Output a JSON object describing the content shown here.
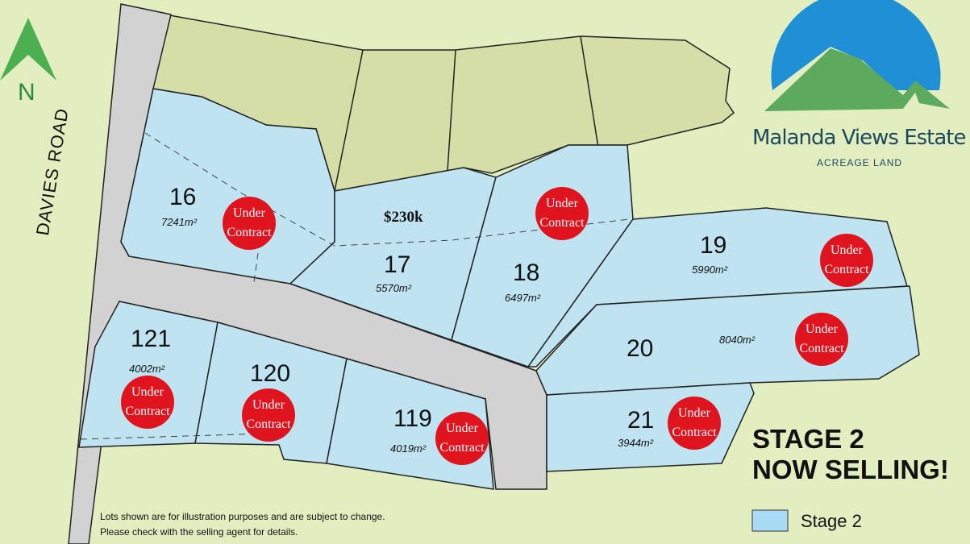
{
  "road_name": "DAVIES ROAD",
  "north_label": "N",
  "logo": {
    "title": "Malanda Views Estate",
    "subtitle": "ACREAGE LAND"
  },
  "headline": [
    "STAGE 2",
    "NOW SELLING!"
  ],
  "legend": {
    "label": "Stage 2",
    "color": "#a9dcf4"
  },
  "disclaimer": [
    "Lots shown are for illustration purposes and are subject to change.",
    "Please check with the selling agent for details."
  ],
  "colors": {
    "stage2_lot": "#bfe3f1",
    "future_lot": "#d4dea6",
    "road": "#d2d2d2",
    "sold_badge": "#e0141e",
    "background": "#e3eec0"
  },
  "lots": [
    {
      "number": "16",
      "area": "7241",
      "status": "Under Contract"
    },
    {
      "number": "17",
      "area": "5570",
      "status": "",
      "price": "$230k"
    },
    {
      "number": "18",
      "area": "6497",
      "status": "Under Contract"
    },
    {
      "number": "19",
      "area": "5990",
      "status": "Under Contract"
    },
    {
      "number": "20",
      "area": "8040",
      "status": "Under Contract"
    },
    {
      "number": "21",
      "area": "3944",
      "status": "Under Contract"
    },
    {
      "number": "119",
      "area": "4019",
      "status": "Under Contract"
    },
    {
      "number": "120",
      "area": "",
      "status": "Under Contract"
    },
    {
      "number": "121",
      "area": "4002",
      "status": "Under Contract"
    }
  ],
  "area_unit": "m²",
  "badge_lines": [
    "Under",
    "Contract"
  ]
}
